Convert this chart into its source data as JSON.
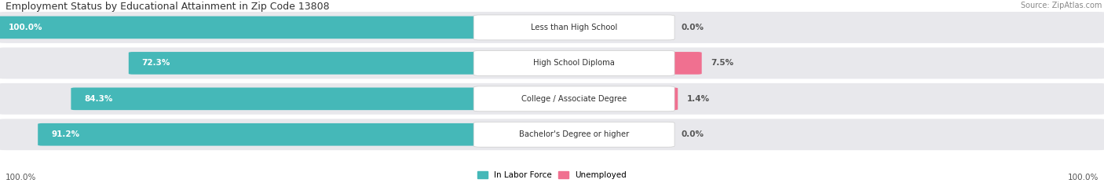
{
  "title": "Employment Status by Educational Attainment in Zip Code 13808",
  "source": "Source: ZipAtlas.com",
  "categories": [
    "Less than High School",
    "High School Diploma",
    "College / Associate Degree",
    "Bachelor's Degree or higher"
  ],
  "labor_force": [
    100.0,
    72.3,
    84.3,
    91.2
  ],
  "unemployed": [
    0.0,
    7.5,
    1.4,
    0.0
  ],
  "labor_force_color": "#45b8b8",
  "unemployed_color": "#f07090",
  "row_bg_color": "#e8e8ec",
  "label_box_color": "#ffffff",
  "axis_label_left": "100.0%",
  "axis_label_right": "100.0%",
  "legend_labor": "In Labor Force",
  "legend_unemployed": "Unemployed",
  "max_val": 100.0
}
